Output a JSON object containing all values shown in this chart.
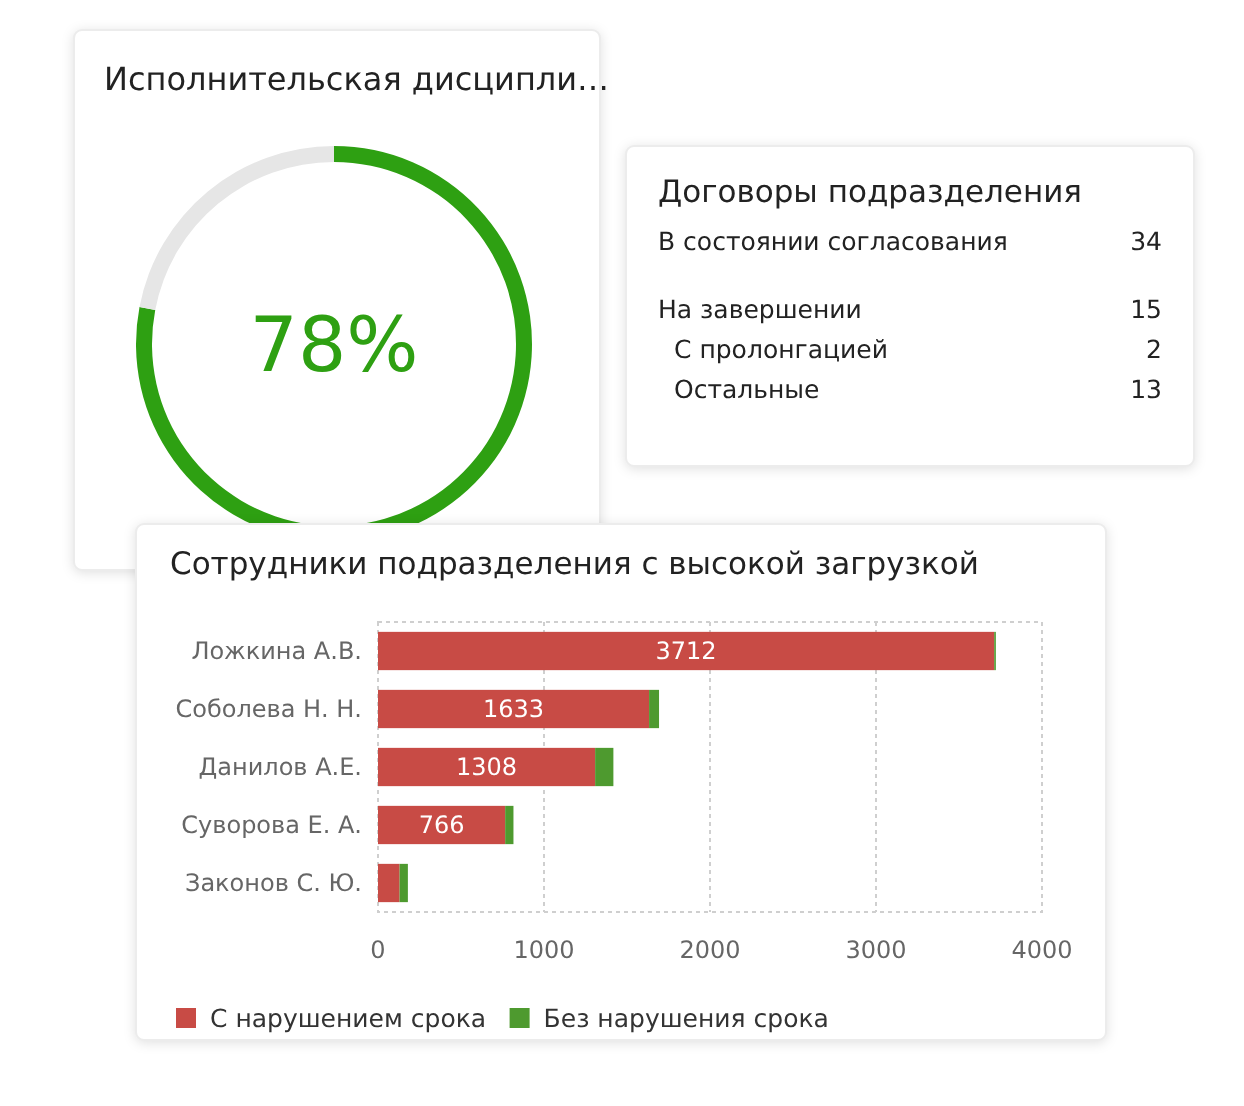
{
  "chart_data": [
    {
      "type": "donut",
      "title": "Исполнительская дисципли…",
      "categories": [
        null,
        null
      ],
      "values": [
        78,
        22
      ],
      "colors": [
        "#2ea012",
        "#e6e6e6"
      ],
      "value_labels": [
        "78%",
        null
      ]
    },
    {
      "type": "other",
      "title": "Договоры подразделения",
      "annotations": [
        "В состоянии согласования",
        "34",
        "На завершении",
        "15",
        "С пролонгацией",
        "2",
        "Остальные",
        "13"
      ]
    },
    {
      "type": "bar",
      "orientation": "horizontal",
      "stacked": true,
      "title": "Сотрудники подразделения с высокой загрузкой",
      "categories": [
        "Ложкина А.В.",
        "Соболева Н. Н.",
        "Данилов А.Е.",
        "Суворова Е. А.",
        "Законов С. Ю."
      ],
      "series": [
        {
          "name": "С нарушением срока",
          "color": "#c84b45",
          "values": [
            3712,
            1633,
            1308,
            766,
            130
          ],
          "value_labels": [
            "3712",
            "1633",
            "1308",
            "766",
            null
          ]
        },
        {
          "name": "Без нарушения срока",
          "color": "#4e9a2f",
          "values": [
            10,
            60,
            110,
            50,
            50
          ]
        }
      ],
      "xlim": [
        0,
        4000
      ],
      "xticks": [
        0,
        1000,
        2000,
        3000,
        4000
      ],
      "grid": "x",
      "legend": "bottom"
    }
  ]
}
